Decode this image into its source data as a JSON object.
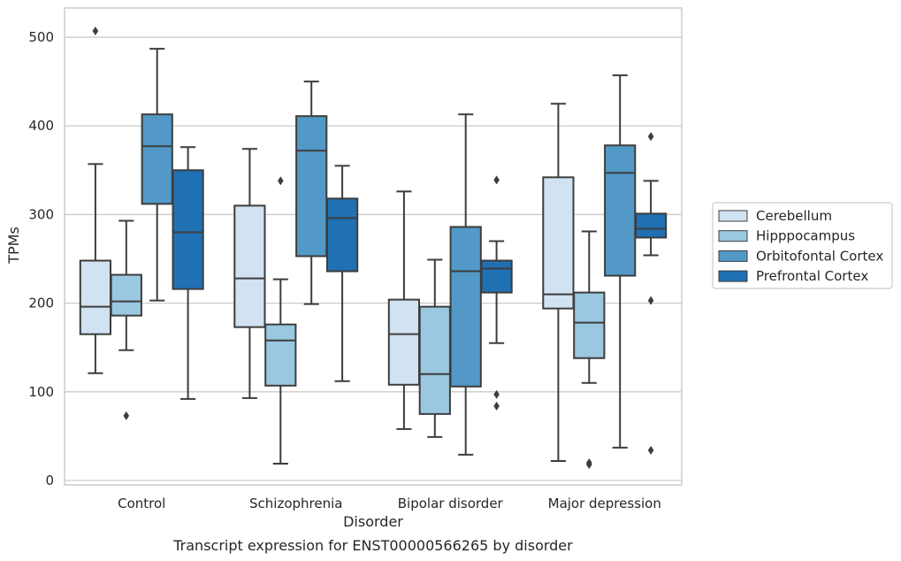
{
  "caption": "Transcript expression for ENST00000566265 by disorder",
  "chart_data": {
    "type": "box",
    "xlabel": "Disorder",
    "ylabel": "TPMs",
    "ylim": [
      -5,
      533
    ],
    "yticks": [
      0,
      100,
      200,
      300,
      400,
      500
    ],
    "grid": "horizontal",
    "legend_position": "right",
    "categories": [
      "Control",
      "Schizophrenia",
      "Bipolar disorder",
      "Major depression"
    ],
    "series": [
      {
        "name": "Cerebellum",
        "color": "#d1e2f2",
        "boxes": [
          {
            "whislo": 121,
            "q1": 165,
            "med": 196,
            "q3": 248,
            "whishi": 357,
            "fliers": [
              507
            ]
          },
          {
            "whislo": 93,
            "q1": 173,
            "med": 228,
            "q3": 310,
            "whishi": 374,
            "fliers": []
          },
          {
            "whislo": 58,
            "q1": 108,
            "med": 165,
            "q3": 204,
            "whishi": 326,
            "fliers": []
          },
          {
            "whislo": 22,
            "q1": 194,
            "med": 210,
            "q3": 342,
            "whishi": 425,
            "fliers": []
          }
        ]
      },
      {
        "name": "Hipppocampus",
        "color": "#9ac8e0",
        "boxes": [
          {
            "whislo": 147,
            "q1": 186,
            "med": 202,
            "q3": 232,
            "whishi": 293,
            "fliers": [
              73
            ]
          },
          {
            "whislo": 19,
            "q1": 107,
            "med": 158,
            "q3": 176,
            "whishi": 227,
            "fliers": [
              338
            ]
          },
          {
            "whislo": 49,
            "q1": 75,
            "med": 120,
            "q3": 196,
            "whishi": 249,
            "fliers": []
          },
          {
            "whislo": 110,
            "q1": 138,
            "med": 178,
            "q3": 212,
            "whishi": 281,
            "fliers": [
              20,
              18
            ]
          }
        ]
      },
      {
        "name": "Orbitofontal Cortex",
        "color": "#5299c8",
        "boxes": [
          {
            "whislo": 203,
            "q1": 312,
            "med": 377,
            "q3": 413,
            "whishi": 487,
            "fliers": []
          },
          {
            "whislo": 199,
            "q1": 253,
            "med": 372,
            "q3": 411,
            "whishi": 450,
            "fliers": []
          },
          {
            "whislo": 29,
            "q1": 106,
            "med": 236,
            "q3": 286,
            "whishi": 413,
            "fliers": []
          },
          {
            "whislo": 37,
            "q1": 231,
            "med": 347,
            "q3": 378,
            "whishi": 457,
            "fliers": []
          }
        ]
      },
      {
        "name": "Prefrontal Cortex",
        "color": "#2070b4",
        "boxes": [
          {
            "whislo": 92,
            "q1": 216,
            "med": 280,
            "q3": 350,
            "whishi": 376,
            "fliers": []
          },
          {
            "whislo": 112,
            "q1": 236,
            "med": 296,
            "q3": 318,
            "whishi": 355,
            "fliers": []
          },
          {
            "whislo": 155,
            "q1": 212,
            "med": 239,
            "q3": 248,
            "whishi": 270,
            "fliers": [
              339,
              97,
              84
            ]
          },
          {
            "whislo": 254,
            "q1": 274,
            "med": 284,
            "q3": 301,
            "whishi": 338,
            "fliers": [
              388,
              203,
              34
            ]
          }
        ]
      }
    ]
  }
}
